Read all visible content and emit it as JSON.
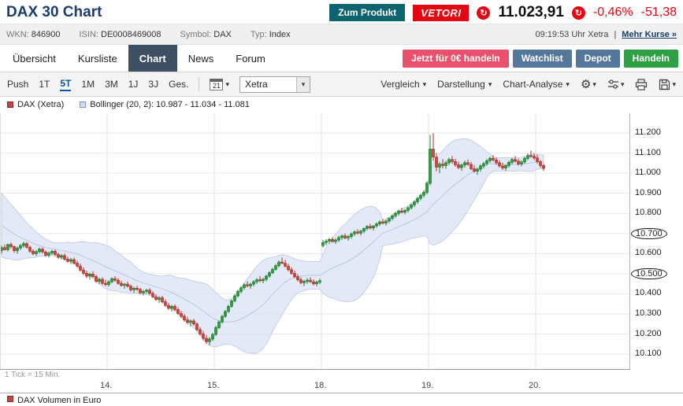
{
  "header": {
    "title": "DAX 30 Chart",
    "product_button": "Zum Produkt",
    "broker_badge": "VETORI",
    "price": "11.023,91",
    "change_pct": "-0,46%",
    "change_abs": "-51,38",
    "colors": {
      "negative": "#e30613",
      "brand_blue": "#1b3d6d",
      "product_teal": "#0c6470"
    }
  },
  "icons": {
    "refresh": "↻",
    "caret": "▾",
    "gear": "⚙",
    "select_caret": "▾"
  },
  "meta": {
    "items": [
      {
        "id": "wkn",
        "label": "WKN:",
        "value": "846900"
      },
      {
        "id": "isin",
        "label": "ISIN:",
        "value": "DE0008469008"
      },
      {
        "id": "symbol",
        "label": "Symbol:",
        "value": "DAX"
      },
      {
        "id": "typ",
        "label": "Typ:",
        "value": "Index"
      }
    ],
    "time": "09:19:53 Uhr Xetra",
    "separator": "|",
    "more_link": "Mehr Kurse »"
  },
  "nav": {
    "tabs": [
      {
        "id": "uebersicht",
        "label": "Übersicht",
        "active": false
      },
      {
        "id": "kursliste",
        "label": "Kursliste",
        "active": false
      },
      {
        "id": "chart",
        "label": "Chart",
        "active": true
      },
      {
        "id": "news",
        "label": "News",
        "active": false
      },
      {
        "id": "forum",
        "label": "Forum",
        "active": false
      }
    ],
    "actions": [
      {
        "id": "jetzt-handeln",
        "label": "Jetzt für 0€ handeln",
        "color": "#e8506b"
      },
      {
        "id": "watchlist",
        "label": "Watchlist",
        "color": "#56779c"
      },
      {
        "id": "depot",
        "label": "Depot",
        "color": "#56779c"
      },
      {
        "id": "handeln",
        "label": "Handeln",
        "color": "#2da044"
      }
    ]
  },
  "toolbar": {
    "periods": [
      "Push",
      "1T",
      "5T",
      "1M",
      "3M",
      "1J",
      "3J",
      "Ges."
    ],
    "active_period": "5T",
    "calendar_value": "21",
    "exchange": "Xetra",
    "menus": [
      "Vergleich",
      "Darstellung",
      "Chart-Analyse"
    ]
  },
  "legend": {
    "series1": "DAX (Xetra)",
    "series1_color": "#c94141",
    "series2": "Bollinger (20, 2): 10.987 - 11.034 - 11.081",
    "series2_fill": "#cfdbf0",
    "series2_border": "#7a97c9",
    "volume": "DAX Volumen in Euro",
    "volume_color": "#c94141"
  },
  "chart_footnote": "1 Tick = 15 Min.",
  "chart_data": {
    "type": "candlestick",
    "title": "DAX 30 Chart, 5 Tage, 1 Tick = 15 Min., Xetra",
    "tick_interval": "15 Min.",
    "y_axis": {
      "min": 10022,
      "max": 11298,
      "ticks": [
        {
          "value": 11200,
          "label": "11.200"
        },
        {
          "value": 11100,
          "label": "11.100"
        },
        {
          "value": 11000,
          "label": "11.000"
        },
        {
          "value": 10900,
          "label": "10.900"
        },
        {
          "value": 10800,
          "label": "10.800"
        },
        {
          "value": 10700,
          "label": "10.700"
        },
        {
          "value": 10600,
          "label": "10.600"
        },
        {
          "value": 10500,
          "label": "10.500"
        },
        {
          "value": 10400,
          "label": "10.400"
        },
        {
          "value": 10300,
          "label": "10.300"
        },
        {
          "value": 10200,
          "label": "10.200"
        },
        {
          "value": 10100,
          "label": "10.100"
        }
      ],
      "circled_values": [
        10700,
        10500
      ]
    },
    "x_axis": {
      "day_labels": [
        "14.",
        "15.",
        "18.",
        "19.",
        "20."
      ],
      "day_start_indices": [
        34,
        68,
        102,
        136,
        170
      ],
      "total_slots": 200
    },
    "bollinger": {
      "period": 20,
      "deviation": 2,
      "current_lower_mid_upper": "10.987 - 11.034 - 11.081",
      "seed_closes": [
        10905,
        10885,
        10862,
        10845,
        10832,
        10818,
        10802,
        10788,
        10775,
        10760,
        10748,
        10735,
        10720,
        10705,
        10692,
        10678,
        10665,
        10652,
        10640,
        10628
      ]
    },
    "colors": {
      "up": "#2f9e41",
      "up_border": "#1e7d2c",
      "down": "#d2453c",
      "down_border": "#a8322a",
      "band_fill": "#dce4f4",
      "band_line": "#b9c8e4",
      "grid": "#e7e7e7",
      "day_grid": "#dedede"
    },
    "candles": [
      [
        10615,
        10640,
        10600,
        10630
      ],
      [
        10630,
        10645,
        10615,
        10620
      ],
      [
        10620,
        10650,
        10610,
        10645
      ],
      [
        10645,
        10655,
        10625,
        10635
      ],
      [
        10635,
        10640,
        10605,
        10615
      ],
      [
        10615,
        10635,
        10600,
        10628
      ],
      [
        10628,
        10648,
        10618,
        10640
      ],
      [
        10640,
        10660,
        10630,
        10650
      ],
      [
        10650,
        10658,
        10625,
        10632
      ],
      [
        10632,
        10640,
        10605,
        10612
      ],
      [
        10612,
        10622,
        10592,
        10600
      ],
      [
        10600,
        10618,
        10588,
        10610
      ],
      [
        10610,
        10630,
        10600,
        10622
      ],
      [
        10622,
        10632,
        10602,
        10608
      ],
      [
        10608,
        10615,
        10585,
        10592
      ],
      [
        10592,
        10610,
        10580,
        10603
      ],
      [
        10603,
        10618,
        10593,
        10612
      ],
      [
        10612,
        10620,
        10588,
        10596
      ],
      [
        10596,
        10605,
        10575,
        10582
      ],
      [
        10582,
        10598,
        10570,
        10590
      ],
      [
        10590,
        10600,
        10565,
        10572
      ],
      [
        10572,
        10585,
        10555,
        10562
      ],
      [
        10562,
        10578,
        10548,
        10570
      ],
      [
        10570,
        10580,
        10545,
        10552
      ],
      [
        10552,
        10565,
        10530,
        10538
      ],
      [
        10538,
        10550,
        10510,
        10518
      ],
      [
        10518,
        10532,
        10495,
        10502
      ],
      [
        10502,
        10515,
        10478,
        10488
      ],
      [
        10488,
        10505,
        10470,
        10498
      ],
      [
        10498,
        10512,
        10480,
        10486
      ],
      [
        10486,
        10495,
        10455,
        10462
      ],
      [
        10462,
        10480,
        10448,
        10472
      ],
      [
        10472,
        10482,
        10445,
        10452
      ],
      [
        10452,
        10470,
        10438,
        10446
      ],
      [
        10446,
        10468,
        10436,
        10460
      ],
      [
        10460,
        10482,
        10452,
        10475
      ],
      [
        10475,
        10488,
        10460,
        10468
      ],
      [
        10468,
        10478,
        10446,
        10452
      ],
      [
        10452,
        10465,
        10435,
        10442
      ],
      [
        10442,
        10455,
        10425,
        10448
      ],
      [
        10448,
        10460,
        10432,
        10438
      ],
      [
        10438,
        10446,
        10412,
        10420
      ],
      [
        10420,
        10435,
        10405,
        10428
      ],
      [
        10428,
        10440,
        10415,
        10422
      ],
      [
        10422,
        10430,
        10398,
        10405
      ],
      [
        10405,
        10418,
        10392,
        10412
      ],
      [
        10412,
        10425,
        10400,
        10418
      ],
      [
        10418,
        10428,
        10395,
        10402
      ],
      [
        10402,
        10412,
        10378,
        10385
      ],
      [
        10385,
        10398,
        10365,
        10372
      ],
      [
        10372,
        10388,
        10355,
        10380
      ],
      [
        10380,
        10390,
        10352,
        10360
      ],
      [
        10360,
        10372,
        10335,
        10342
      ],
      [
        10342,
        10355,
        10320,
        10328
      ],
      [
        10328,
        10345,
        10312,
        10338
      ],
      [
        10338,
        10348,
        10315,
        10322
      ],
      [
        10322,
        10332,
        10295,
        10302
      ],
      [
        10302,
        10315,
        10280,
        10288
      ],
      [
        10288,
        10300,
        10262,
        10270
      ],
      [
        10270,
        10285,
        10250,
        10258
      ],
      [
        10258,
        10272,
        10238,
        10265
      ],
      [
        10265,
        10275,
        10242,
        10250
      ],
      [
        10250,
        10258,
        10215,
        10222
      ],
      [
        10222,
        10235,
        10192,
        10200
      ],
      [
        10200,
        10215,
        10168,
        10178
      ],
      [
        10178,
        10195,
        10152,
        10162
      ],
      [
        10162,
        10185,
        10145,
        10175
      ],
      [
        10175,
        10205,
        10165,
        10198
      ],
      [
        10198,
        10240,
        10190,
        10232
      ],
      [
        10232,
        10268,
        10225,
        10260
      ],
      [
        10260,
        10295,
        10252,
        10288
      ],
      [
        10288,
        10320,
        10280,
        10312
      ],
      [
        10312,
        10345,
        10305,
        10338
      ],
      [
        10338,
        10372,
        10330,
        10365
      ],
      [
        10365,
        10398,
        10358,
        10390
      ],
      [
        10390,
        10420,
        10382,
        10412
      ],
      [
        10412,
        10438,
        10402,
        10430
      ],
      [
        10430,
        10452,
        10420,
        10445
      ],
      [
        10445,
        10462,
        10432,
        10440
      ],
      [
        10440,
        10455,
        10425,
        10448
      ],
      [
        10448,
        10468,
        10438,
        10460
      ],
      [
        10460,
        10478,
        10450,
        10470
      ],
      [
        10470,
        10488,
        10458,
        10465
      ],
      [
        10465,
        10480,
        10452,
        10472
      ],
      [
        10472,
        10495,
        10462,
        10488
      ],
      [
        10488,
        10512,
        10480,
        10505
      ],
      [
        10505,
        10530,
        10498,
        10522
      ],
      [
        10522,
        10548,
        10515,
        10540
      ],
      [
        10540,
        10565,
        10532,
        10558
      ],
      [
        10558,
        10580,
        10548,
        10552
      ],
      [
        10552,
        10568,
        10530,
        10538
      ],
      [
        10538,
        10550,
        10512,
        10520
      ],
      [
        10520,
        10532,
        10495,
        10502
      ],
      [
        10502,
        10515,
        10478,
        10485
      ],
      [
        10485,
        10498,
        10462,
        10470
      ],
      [
        10470,
        10482,
        10448,
        10455
      ],
      [
        10455,
        10470,
        10438,
        10462
      ],
      [
        10462,
        10478,
        10450,
        10468
      ],
      [
        10468,
        10482,
        10455,
        10460
      ],
      [
        10460,
        10472,
        10442,
        10450
      ],
      [
        10450,
        10465,
        10438,
        10458
      ],
      [
        10458,
        10475,
        10448,
        10465
      ],
      [
        10640,
        10668,
        10630,
        10655
      ],
      [
        10655,
        10672,
        10642,
        10662
      ],
      [
        10662,
        10678,
        10650,
        10670
      ],
      [
        10670,
        10682,
        10655,
        10660
      ],
      [
        10660,
        10675,
        10648,
        10668
      ],
      [
        10668,
        10688,
        10658,
        10680
      ],
      [
        10680,
        10695,
        10668,
        10688
      ],
      [
        10688,
        10700,
        10672,
        10678
      ],
      [
        10678,
        10692,
        10665,
        10685
      ],
      [
        10685,
        10705,
        10675,
        10698
      ],
      [
        10698,
        10715,
        10688,
        10708
      ],
      [
        10708,
        10722,
        10695,
        10702
      ],
      [
        10702,
        10718,
        10690,
        10712
      ],
      [
        10712,
        10730,
        10702,
        10725
      ],
      [
        10725,
        10742,
        10715,
        10735
      ],
      [
        10735,
        10748,
        10720,
        10728
      ],
      [
        10728,
        10742,
        10715,
        10738
      ],
      [
        10738,
        10755,
        10728,
        10748
      ],
      [
        10748,
        10765,
        10738,
        10758
      ],
      [
        10758,
        10772,
        10745,
        10752
      ],
      [
        10752,
        10768,
        10740,
        10762
      ],
      [
        10762,
        10780,
        10752,
        10775
      ],
      [
        10775,
        10795,
        10765,
        10788
      ],
      [
        10788,
        10808,
        10778,
        10800
      ],
      [
        10800,
        10818,
        10790,
        10812
      ],
      [
        10812,
        10828,
        10800,
        10806
      ],
      [
        10806,
        10822,
        10795,
        10815
      ],
      [
        10815,
        10835,
        10805,
        10828
      ],
      [
        10828,
        10850,
        10820,
        10842
      ],
      [
        10842,
        10865,
        10832,
        10858
      ],
      [
        10858,
        10882,
        10848,
        10875
      ],
      [
        10875,
        10898,
        10865,
        10890
      ],
      [
        10890,
        10915,
        10880,
        10905
      ],
      [
        10905,
        10960,
        10895,
        10950
      ],
      [
        10950,
        11190,
        10940,
        11120
      ],
      [
        11120,
        11200,
        11060,
        11080
      ],
      [
        11080,
        11100,
        11010,
        11030
      ],
      [
        11030,
        11055,
        11000,
        11045
      ],
      [
        11045,
        11070,
        11025,
        11038
      ],
      [
        11038,
        11062,
        11022,
        11052
      ],
      [
        11052,
        11078,
        11040,
        11068
      ],
      [
        11068,
        11085,
        11048,
        11058
      ],
      [
        11058,
        11072,
        11032,
        11042
      ],
      [
        11042,
        11058,
        11020,
        11028
      ],
      [
        11028,
        11048,
        11012,
        11040
      ],
      [
        11040,
        11062,
        11028,
        11052
      ],
      [
        11052,
        11068,
        11036,
        11044
      ],
      [
        11044,
        11056,
        11015,
        11022
      ],
      [
        11022,
        11040,
        11002,
        11010
      ],
      [
        11010,
        11028,
        10992,
        11020
      ],
      [
        11020,
        11044,
        11008,
        11036
      ],
      [
        11036,
        11056,
        11024,
        11048
      ],
      [
        11048,
        11070,
        11038,
        11062
      ],
      [
        11062,
        11082,
        11052,
        11074
      ],
      [
        11074,
        11090,
        11058,
        11066
      ],
      [
        11066,
        11078,
        11044,
        11052
      ],
      [
        11052,
        11064,
        11028,
        11036
      ],
      [
        11036,
        11052,
        11016,
        11026
      ],
      [
        11026,
        11044,
        11012,
        11038
      ],
      [
        11038,
        11062,
        11028,
        11054
      ],
      [
        11054,
        11076,
        11044,
        11068
      ],
      [
        11068,
        11086,
        11054,
        11060
      ],
      [
        11060,
        11072,
        11038,
        11046
      ],
      [
        11046,
        11064,
        11034,
        11056
      ],
      [
        11056,
        11082,
        11046,
        11074
      ],
      [
        11074,
        11098,
        11064,
        11088
      ],
      [
        11088,
        11112,
        11076,
        11084
      ],
      [
        11084,
        11100,
        11066,
        11076
      ],
      [
        11076,
        11092,
        11048,
        11058
      ],
      [
        11058,
        11066,
        11028,
        11038
      ],
      [
        11038,
        11046,
        11012,
        11024
      ]
    ]
  }
}
